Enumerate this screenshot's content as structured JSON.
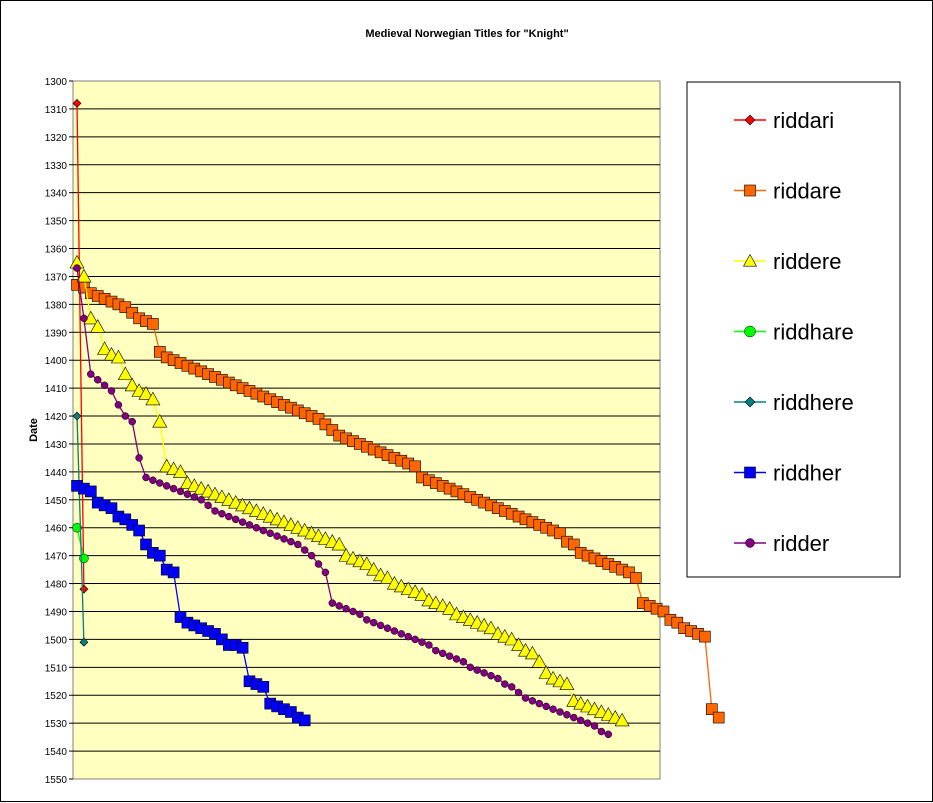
{
  "chart_data": {
    "type": "line",
    "title": "Medieval Norwegian Titles for \"Knight\"",
    "ylabel": "Date",
    "ylim": [
      1300,
      1550
    ],
    "y_reversed": true,
    "y_ticks": [
      1300,
      1310,
      1320,
      1330,
      1340,
      1350,
      1360,
      1370,
      1380,
      1390,
      1400,
      1410,
      1420,
      1430,
      1440,
      1450,
      1460,
      1470,
      1480,
      1490,
      1500,
      1510,
      1520,
      1530,
      1540,
      1550
    ],
    "grid": true,
    "plot_background": "#ffffc0",
    "legend_position": "right",
    "series": [
      {
        "name": "riddari",
        "color": "#ff0000",
        "marker": "diamond",
        "values": [
          1308,
          1482
        ]
      },
      {
        "name": "riddare",
        "color": "#ff6600",
        "marker": "square",
        "values": [
          1373,
          1374,
          1376,
          1377,
          1378,
          1379,
          1380,
          1381,
          1383,
          1385,
          1386,
          1387,
          1397,
          1399,
          1400,
          1401,
          1402,
          1403,
          1404,
          1405,
          1406,
          1407,
          1408,
          1409,
          1410,
          1411,
          1412,
          1413,
          1414,
          1415,
          1416,
          1417,
          1418,
          1419,
          1420,
          1421,
          1423,
          1425,
          1427,
          1428,
          1429,
          1430,
          1431,
          1432,
          1433,
          1434,
          1435,
          1436,
          1437,
          1438,
          1442,
          1443,
          1444,
          1445,
          1446,
          1447,
          1448,
          1449,
          1450,
          1451,
          1452,
          1453,
          1454,
          1455,
          1456,
          1457,
          1458,
          1459,
          1460,
          1461,
          1462,
          1465,
          1466,
          1469,
          1470,
          1471,
          1472,
          1473,
          1474,
          1475,
          1476,
          1478,
          1487,
          1488,
          1489,
          1490,
          1493,
          1494,
          1496,
          1497,
          1498,
          1499,
          1525,
          1528
        ]
      },
      {
        "name": "riddere",
        "color": "#ffff00",
        "marker": "triangle",
        "values": [
          1365,
          1370,
          1385,
          1388,
          1396,
          1398,
          1399,
          1405,
          1409,
          1411,
          1412,
          1414,
          1422,
          1438,
          1439,
          1440,
          1444,
          1445,
          1446,
          1447,
          1448,
          1449,
          1450,
          1451,
          1452,
          1453,
          1454,
          1455,
          1456,
          1457,
          1458,
          1459,
          1460,
          1461,
          1462,
          1463,
          1464,
          1465,
          1466,
          1470,
          1471,
          1472,
          1473,
          1475,
          1477,
          1478,
          1480,
          1481,
          1482,
          1483,
          1484,
          1486,
          1487,
          1488,
          1489,
          1491,
          1492,
          1493,
          1494,
          1495,
          1496,
          1498,
          1499,
          1500,
          1502,
          1504,
          1505,
          1508,
          1512,
          1514,
          1515,
          1516,
          1522,
          1523,
          1524,
          1525,
          1526,
          1527,
          1528,
          1529
        ]
      },
      {
        "name": "riddhare",
        "color": "#00ff00",
        "marker": "circle",
        "values": [
          1460,
          1471
        ]
      },
      {
        "name": "riddhere",
        "color": "#008080",
        "marker": "diamond",
        "values": [
          1420,
          1501
        ]
      },
      {
        "name": "riddher",
        "color": "#0000ff",
        "marker": "square",
        "values": [
          1445,
          1446,
          1447,
          1451,
          1452,
          1453,
          1456,
          1457,
          1459,
          1461,
          1466,
          1469,
          1470,
          1475,
          1476,
          1492,
          1494,
          1495,
          1496,
          1497,
          1498,
          1500,
          1502,
          1502,
          1503,
          1515,
          1516,
          1517,
          1523,
          1524,
          1525,
          1526,
          1528,
          1529
        ]
      },
      {
        "name": "ridder",
        "color": "#800080",
        "marker": "circle",
        "values": [
          1367,
          1385,
          1405,
          1407,
          1409,
          1411,
          1416,
          1420,
          1422,
          1435,
          1442,
          1443,
          1444,
          1445,
          1446,
          1447,
          1448,
          1449,
          1450,
          1452,
          1454,
          1455,
          1456,
          1457,
          1458,
          1459,
          1460,
          1461,
          1462,
          1463,
          1464,
          1465,
          1466,
          1468,
          1470,
          1473,
          1476,
          1487,
          1488,
          1489,
          1490,
          1491,
          1493,
          1494,
          1495,
          1496,
          1497,
          1498,
          1499,
          1500,
          1501,
          1502,
          1504,
          1505,
          1506,
          1507,
          1508,
          1510,
          1511,
          1512,
          1513,
          1514,
          1516,
          1517,
          1519,
          1521,
          1522,
          1523,
          1524,
          1525,
          1526,
          1527,
          1528,
          1529,
          1530,
          1531,
          1533,
          1534
        ]
      }
    ]
  }
}
